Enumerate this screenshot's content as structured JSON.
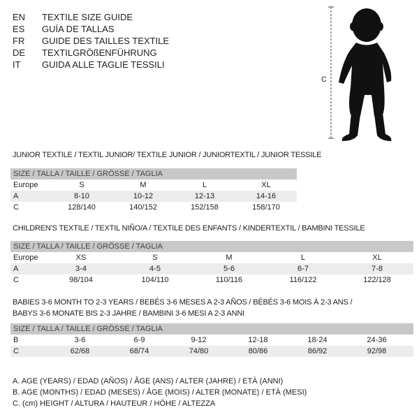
{
  "titles": [
    {
      "code": "EN",
      "text": "TEXTILE SIZE GUIDE"
    },
    {
      "code": "ES",
      "text": "GUÍA DE TALLAS"
    },
    {
      "code": "FR",
      "text": "GUIDE DES TAILLES TEXTILE"
    },
    {
      "code": "DE",
      "text": "TEXTILGRÖßENFÜHRUNG"
    },
    {
      "code": "IT",
      "text": "GUIDA ALLE TAGLIE TESSILI"
    }
  ],
  "figure": {
    "measure_label": "C",
    "icon": "baby-silhouette"
  },
  "size_header": "SIZE / TALLA / TAILLE / GRÖSSE / TAGLIA",
  "junior": {
    "title": "JUNIOR TEXTILE / TEXTIL JUNIOR/ TEXTILE JUNIOR / JUNIORTEXTIL / JUNIOR TESSILE",
    "rows": [
      [
        "Europe",
        "S",
        "M",
        "L",
        "XL"
      ],
      [
        "A",
        "8-10",
        "10-12",
        "12-13",
        "14-16"
      ],
      [
        "C",
        "128/140",
        "140/152",
        "152/158",
        "158/170"
      ]
    ]
  },
  "children": {
    "title": "CHILDREN'S TEXTILE / TEXTIL NIÑO/A / TEXTILE DES ENFANTS / KINDERTEXTIL / BAMBINI TESSILE",
    "rows": [
      [
        "Europe",
        "XS",
        "S",
        "M",
        "L",
        "XL"
      ],
      [
        "A",
        "3-4",
        "4-5",
        "5-6",
        "6-7",
        "7-8"
      ],
      [
        "C",
        "98/104",
        "104/110",
        "110/116",
        "116/122",
        "122/128"
      ]
    ]
  },
  "babies": {
    "title_line1": "BABIES 3-6 MONTH TO 2-3 YEARS / BEBÉS 3-6 MESES A 2-3 AÑOS / BÉBÉS 3-6 MOIS À 2-3 ANS /",
    "title_line2": "BABYS 3-6 MONATE BIS 2-3 JAHRE / BAMBINI 3-6 MESI A 2-3 ANNI",
    "rows": [
      [
        "B",
        "3-6",
        "6-9",
        "9-12",
        "12-18",
        "18-24",
        "24-36"
      ],
      [
        "C",
        "62/68",
        "68/74",
        "74/80",
        "80/86",
        "86/92",
        "92/98"
      ]
    ]
  },
  "legend": [
    "A. AGE (YEARS) / EDAD (AÑOS) / ÂGE (ANS) / ALTER (JAHRE) / ETÀ (ANNI)",
    "B. AGE (MONTHS) / EDAD (MESES) / ÂGE (MOIS) / ALTER (MONATE) / ETÀ (MESI)",
    "C. (cm) HEIGHT / ALTURA / HAUTEUR / HÖHE / ALTEZZA"
  ]
}
